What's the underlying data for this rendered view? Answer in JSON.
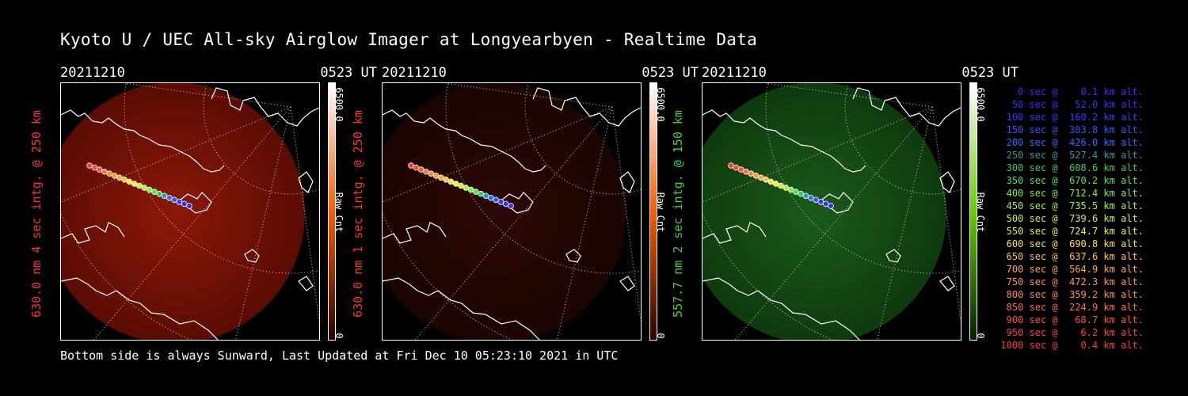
{
  "title": "Kyoto U / UEC All-sky Airglow Imager at Longyearbyen - Realtime Data",
  "footer": "Bottom side is always Sunward, Last Updated at Fri Dec 10 05:23:10 2021 in UTC",
  "panels": [
    {
      "date": "20211210",
      "time": "0523 UT",
      "ylabel": "630.0 nm 4 sec intg. @ 250 km",
      "label_color": "#ff3030",
      "cb_max": "6500.0",
      "cb_min": "0",
      "cb_unit": "Raw Cnt",
      "cb_top": "#ffffff",
      "cb_mid": "#ff5a00",
      "cb_bottom": "#2a0000",
      "glow_inner": "#8c1808",
      "glow_outer": "#5a0c04",
      "glow_opacity": 1.0
    },
    {
      "date": "20211210",
      "time": "0523 UT",
      "ylabel": "630.0 nm 1 sec intg. @ 250 km",
      "label_color": "#ff3030",
      "cb_max": "6500.0",
      "cb_min": "0",
      "cb_unit": "Raw Cnt",
      "cb_top": "#ffffff",
      "cb_mid": "#ff5a00",
      "cb_bottom": "#2a0000",
      "glow_inner": "#2c0804",
      "glow_outer": "#1a0402",
      "glow_opacity": 1.0
    },
    {
      "date": "20211210",
      "time": "0523 UT",
      "ylabel": "557.7 nm 2 sec intg. @ 150 km",
      "label_color": "#40d040",
      "cb_max": "6500.0",
      "cb_min": "0",
      "cb_unit": "Raw Cnt",
      "cb_top": "#ffffff",
      "cb_mid": "#66cc00",
      "cb_bottom": "#002200",
      "glow_inner": "#1c5a1c",
      "glow_outer": "#0e3a0e",
      "glow_opacity": 1.0
    }
  ],
  "legend": [
    {
      "text": "   0 sec @    0.1 km alt.",
      "color": "#3a2bff"
    },
    {
      "text": "  50 sec @   52.0 km alt.",
      "color": "#3a2bff"
    },
    {
      "text": " 100 sec @  160.2 km alt.",
      "color": "#2f3cff"
    },
    {
      "text": " 150 sec @  303.8 km alt.",
      "color": "#2f55ff"
    },
    {
      "text": " 200 sec @  426.0 km alt.",
      "color": "#2a6cff"
    },
    {
      "text": " 250 sec @  527.4 km alt.",
      "color": "#2a9aa8"
    },
    {
      "text": " 300 sec @  608.6 km alt.",
      "color": "#2ecc6a"
    },
    {
      "text": " 350 sec @  670.2 km alt.",
      "color": "#4ee64e"
    },
    {
      "text": " 400 sec @  712.4 km alt.",
      "color": "#7cf03a"
    },
    {
      "text": " 450 sec @  735.5 km alt.",
      "color": "#a8f03a"
    },
    {
      "text": " 500 sec @  739.6 km alt.",
      "color": "#d2f03a"
    },
    {
      "text": " 550 sec @  724.7 km alt.",
      "color": "#f0f03a"
    },
    {
      "text": " 600 sec @  690.8 km alt.",
      "color": "#ffe040"
    },
    {
      "text": " 650 sec @  637.6 km alt.",
      "color": "#ffc040"
    },
    {
      "text": " 700 sec @  564.9 km alt.",
      "color": "#ffa838"
    },
    {
      "text": " 750 sec @  472.3 km alt.",
      "color": "#ff9838"
    },
    {
      "text": " 800 sec @  359.2 km alt.",
      "color": "#ff8a38"
    },
    {
      "text": " 850 sec @  224.9 km alt.",
      "color": "#ff7038"
    },
    {
      "text": " 900 sec @   68.7 km alt.",
      "color": "#ff5038"
    },
    {
      "text": " 950 sec @    6.2 km alt.",
      "color": "#ff4030"
    },
    {
      "text": "1000 sec @    0.4 km alt.",
      "color": "#ff3a30"
    }
  ]
}
